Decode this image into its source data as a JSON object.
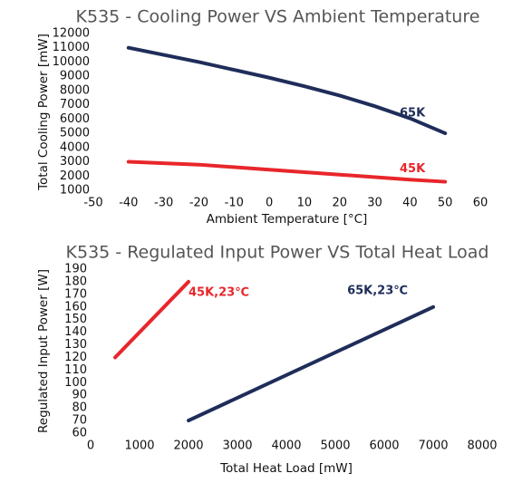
{
  "chart_data": [
    {
      "type": "line",
      "title": "K535 - Cooling Power VS Ambient Temperature",
      "x_label": "Ambient Temperature [°C]",
      "y_label": "Total Cooling Power [mW]",
      "xlim": [
        -50,
        60
      ],
      "xticks": [
        -50,
        -40,
        -30,
        -20,
        -10,
        0,
        10,
        20,
        30,
        40,
        50,
        60
      ],
      "ylim": [
        1000,
        12000
      ],
      "yticks": [
        1000,
        2000,
        3000,
        4000,
        5000,
        6000,
        7000,
        8000,
        9000,
        10000,
        11000,
        12000
      ],
      "series": [
        {
          "name": "65K",
          "color": "#1f2d5a",
          "x": [
            -40,
            -30,
            -20,
            -10,
            0,
            10,
            20,
            30,
            40,
            50
          ],
          "values": [
            11000,
            10500,
            10000,
            9450,
            8900,
            8300,
            7650,
            6900,
            6050,
            5000
          ]
        },
        {
          "name": "45K",
          "color": "#e8262b",
          "x": [
            -40,
            -20,
            0,
            20,
            40,
            50
          ],
          "values": [
            3000,
            2800,
            2450,
            2100,
            1750,
            1600
          ]
        }
      ]
    },
    {
      "type": "line",
      "title": "K535 - Regulated Input Power VS Total Heat Load",
      "x_label": "Total Heat Load [mW]",
      "y_label": "Regulated Input Power [W]",
      "xlim": [
        0,
        8000
      ],
      "xticks": [
        0,
        1000,
        2000,
        3000,
        4000,
        5000,
        6000,
        7000,
        8000
      ],
      "ylim": [
        60,
        190
      ],
      "yticks": [
        60,
        70,
        80,
        90,
        100,
        110,
        120,
        130,
        140,
        150,
        160,
        170,
        180,
        190
      ],
      "series": [
        {
          "name": "45K,23℃",
          "color": "#e8262b",
          "x": [
            500,
            2000
          ],
          "values": [
            120,
            180
          ]
        },
        {
          "name": "65K,23℃",
          "color": "#1f2d5a",
          "x": [
            2000,
            7000
          ],
          "values": [
            70,
            160
          ]
        }
      ]
    }
  ]
}
